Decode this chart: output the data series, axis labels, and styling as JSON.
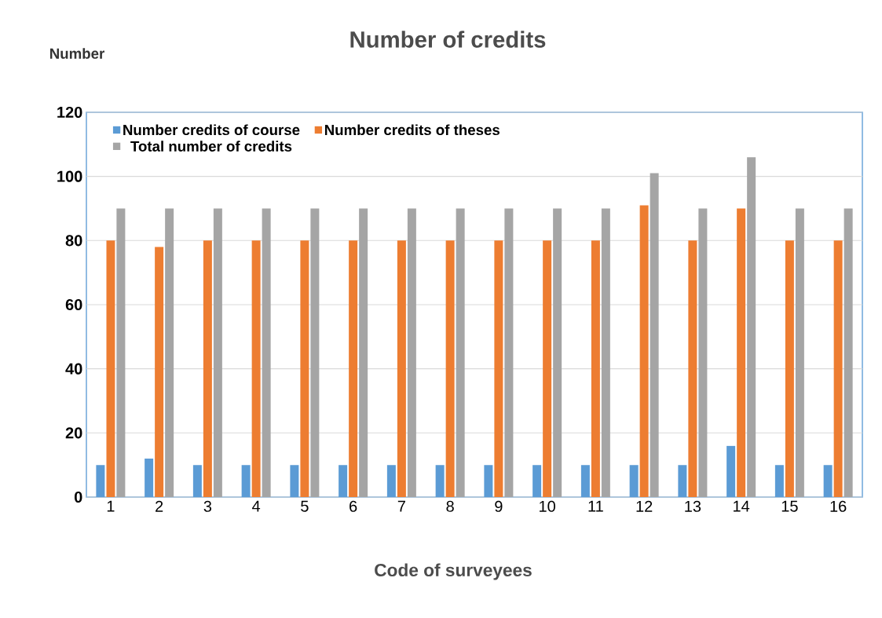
{
  "chart_data": {
    "type": "bar",
    "title": "Number of credits",
    "ylabel": "Number",
    "xlabel": "Code of surveyees",
    "categories": [
      "1",
      "2",
      "3",
      "4",
      "5",
      "6",
      "7",
      "8",
      "9",
      "10",
      "11",
      "12",
      "13",
      "14",
      "15",
      "16"
    ],
    "series": [
      {
        "name": "Number credits of course",
        "color": "#5b9bd5",
        "values": [
          10,
          12,
          10,
          10,
          10,
          10,
          10,
          10,
          10,
          10,
          10,
          10,
          10,
          16,
          10,
          10
        ]
      },
      {
        "name": "Number credits of theses",
        "color": "#ed7d31",
        "values": [
          80,
          78,
          80,
          80,
          80,
          80,
          80,
          80,
          80,
          80,
          80,
          91,
          80,
          90,
          80,
          80
        ]
      },
      {
        "name": "Total number of credits",
        "color": "#a5a5a5",
        "values": [
          90,
          90,
          90,
          90,
          90,
          90,
          90,
          90,
          90,
          90,
          90,
          101,
          90,
          106,
          90,
          90
        ]
      }
    ],
    "ylim": [
      0,
      120
    ],
    "yticks": [
      0,
      20,
      40,
      60,
      80,
      100,
      120
    ],
    "grid": "y",
    "legend": "top left"
  }
}
